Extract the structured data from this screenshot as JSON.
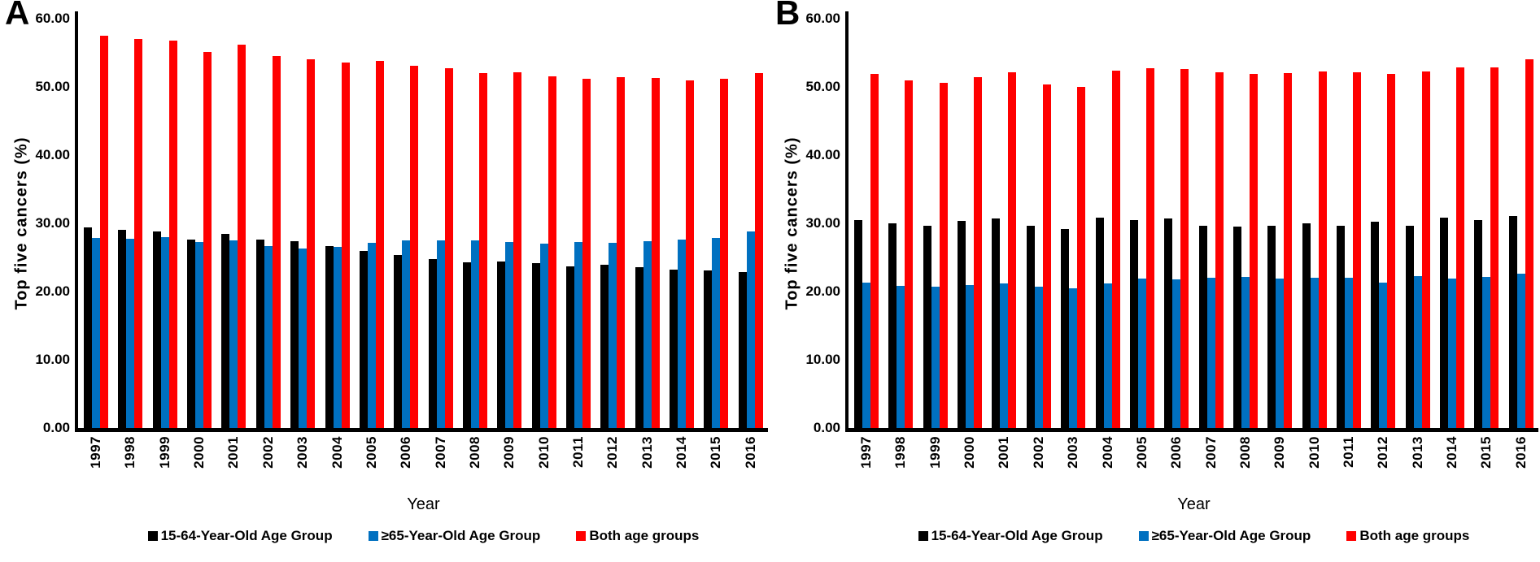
{
  "figure": {
    "panels": [
      {
        "letter": "A"
      },
      {
        "letter": "B"
      }
    ]
  },
  "colors": {
    "series_black": "#000000",
    "series_blue": "#0070C0",
    "series_red": "#FF0000",
    "axis": "#000000",
    "background": "#FFFFFF"
  },
  "chart_data": [
    {
      "type": "bar",
      "panel": "A",
      "title": "",
      "xlabel": "Year",
      "ylabel": "Top five cancers (%)",
      "ylim": [
        0,
        60
      ],
      "yticks": [
        "0.00",
        "10.00",
        "20.00",
        "30.00",
        "40.00",
        "50.00",
        "60.00"
      ],
      "grid": false,
      "legend_position": "bottom",
      "categories": [
        "1997",
        "1998",
        "1999",
        "2000",
        "2001",
        "2002",
        "2003",
        "2004",
        "2005",
        "2006",
        "2007",
        "2008",
        "2009",
        "2010",
        "2011",
        "2012",
        "2013",
        "2014",
        "2015",
        "2016"
      ],
      "series": [
        {
          "name": "15-64-Year-Old Age Group",
          "color": "#000000",
          "values": [
            29.4,
            29.1,
            28.8,
            27.6,
            28.4,
            27.6,
            27.4,
            26.7,
            26.0,
            25.3,
            24.8,
            24.3,
            24.4,
            24.2,
            23.7,
            23.9,
            23.6,
            23.2,
            23.1,
            22.9
          ]
        },
        {
          "name": "≥65-Year-Old Age Group",
          "color": "#0070C0",
          "values": [
            27.9,
            27.7,
            28.0,
            27.3,
            27.5,
            26.7,
            26.3,
            26.5,
            27.1,
            27.5,
            27.5,
            27.5,
            27.3,
            27.0,
            27.3,
            27.1,
            27.4,
            27.6,
            27.9,
            28.8
          ]
        },
        {
          "name": "Both age groups",
          "color": "#FF0000",
          "values": [
            57.5,
            57.0,
            56.8,
            55.1,
            56.2,
            54.5,
            54.0,
            53.6,
            53.8,
            53.1,
            52.7,
            52.0,
            52.1,
            51.6,
            51.2,
            51.4,
            51.3,
            50.9,
            51.2,
            52.0
          ]
        }
      ]
    },
    {
      "type": "bar",
      "panel": "B",
      "title": "",
      "xlabel": "Year",
      "ylabel": "Top five cancers (%)",
      "ylim": [
        0,
        60
      ],
      "yticks": [
        "0.00",
        "10.00",
        "20.00",
        "30.00",
        "40.00",
        "50.00",
        "60.00"
      ],
      "grid": false,
      "legend_position": "bottom",
      "categories": [
        "1997",
        "1998",
        "1999",
        "2000",
        "2001",
        "2002",
        "2003",
        "2004",
        "2005",
        "2006",
        "2007",
        "2008",
        "2009",
        "2010",
        "2011",
        "2012",
        "2013",
        "2014",
        "2015",
        "2016"
      ],
      "series": [
        {
          "name": "15-64-Year-Old Age Group",
          "color": "#000000",
          "values": [
            30.5,
            30.0,
            29.7,
            30.3,
            30.7,
            29.7,
            29.2,
            30.8,
            30.5,
            30.7,
            29.7,
            29.5,
            29.7,
            30.0,
            29.6,
            30.2,
            29.7,
            30.8,
            30.5,
            31.1
          ]
        },
        {
          "name": "≥65-Year-Old Age Group",
          "color": "#0070C0",
          "values": [
            21.3,
            20.8,
            20.7,
            20.9,
            21.2,
            20.7,
            20.5,
            21.2,
            21.9,
            21.8,
            22.0,
            22.1,
            21.9,
            22.0,
            22.0,
            21.3,
            22.3,
            21.9,
            22.2,
            22.6
          ]
        },
        {
          "name": "Both age groups",
          "color": "#FF0000",
          "values": [
            51.9,
            51.0,
            50.6,
            51.4,
            52.2,
            50.4,
            50.0,
            52.4,
            52.7,
            52.6,
            52.1,
            51.9,
            52.0,
            52.3,
            52.1,
            51.9,
            52.3,
            52.9,
            52.9,
            54.1
          ]
        }
      ]
    }
  ]
}
